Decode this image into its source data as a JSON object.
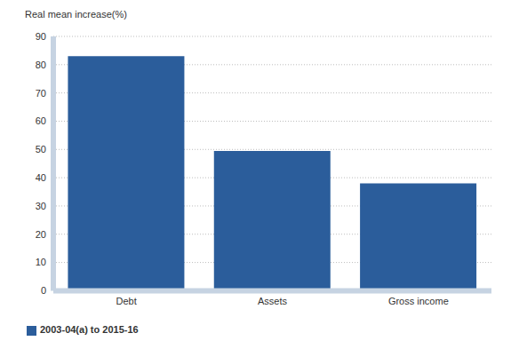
{
  "chart_data": {
    "type": "bar",
    "y_label": "Real mean increase(%)",
    "categories": [
      "Debt",
      "Assets",
      "Gross income"
    ],
    "series": [
      {
        "name": "2003-04(a) to 2015-16",
        "color": "#2b5d9b",
        "values": [
          83,
          49.5,
          38
        ]
      }
    ],
    "ylim": [
      0,
      90
    ],
    "yticks": [
      0,
      10,
      20,
      30,
      40,
      50,
      60,
      70,
      80,
      90
    ],
    "grid": true,
    "legend": "bottom"
  }
}
